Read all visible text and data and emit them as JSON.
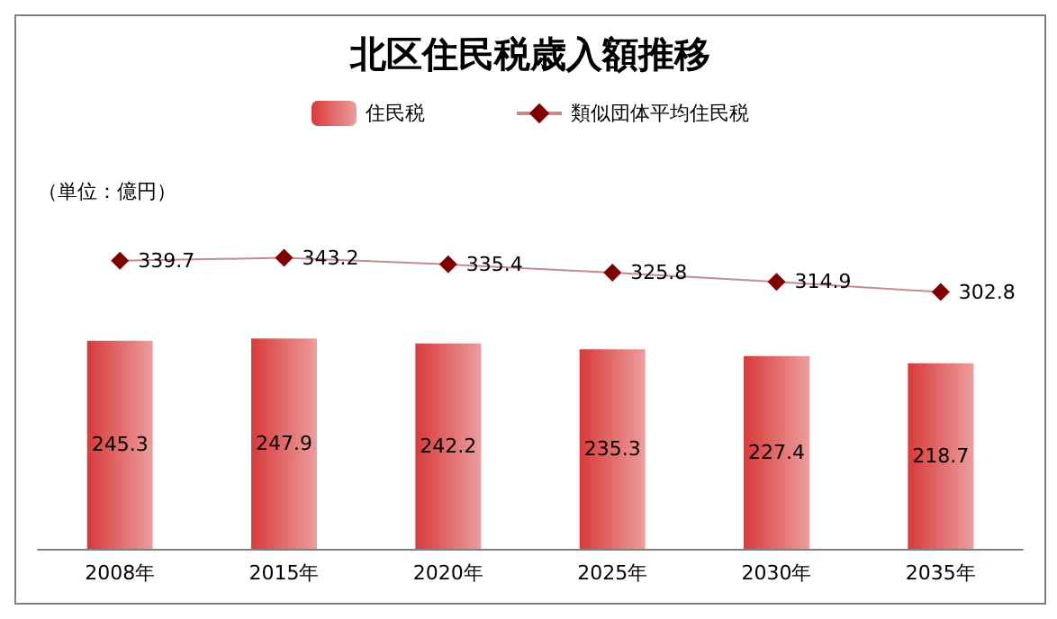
{
  "chart_data": {
    "type": "bar",
    "title": "北区住民税歳入額推移",
    "annotations": [
      "（単位：億円）"
    ],
    "categories": [
      "2008年",
      "2015年",
      "2020年",
      "2025年",
      "2030年",
      "2035年"
    ],
    "series": [
      {
        "name": "住民税",
        "color": "#d83a3a",
        "values": [
          245.3,
          247.9,
          242.2,
          235.3,
          227.4,
          218.7
        ]
      },
      {
        "name": "類似団体平均住民税",
        "type": "line",
        "color": "#800000",
        "values": [
          339.7,
          343.2,
          335.4,
          325.8,
          314.9,
          302.8
        ]
      }
    ],
    "data_labels": true,
    "legend": "top",
    "marker": "diamond",
    "grid": false,
    "tick_labels": "x"
  }
}
